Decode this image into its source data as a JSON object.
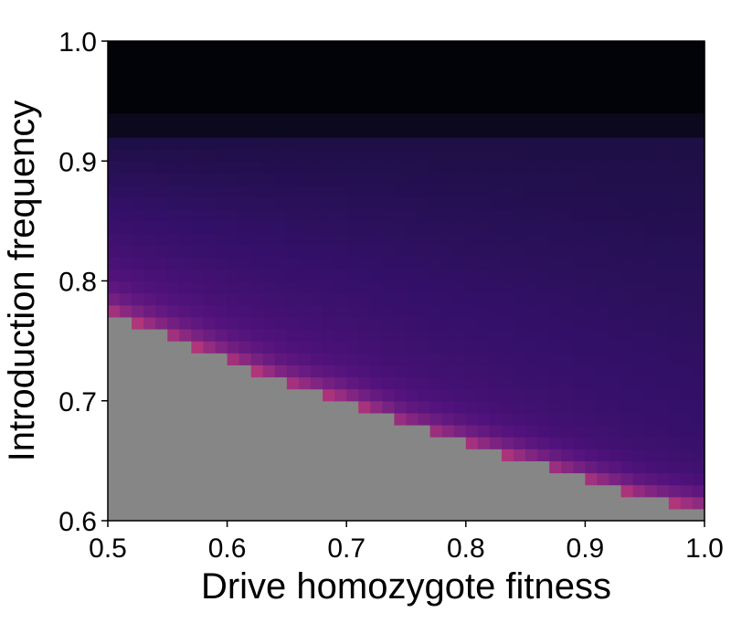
{
  "chart_data": {
    "type": "heatmap",
    "title": "",
    "xlabel": "Drive homozygote fitness",
    "ylabel": "Introduction frequency",
    "xlim": [
      0.5,
      1.0
    ],
    "ylim": [
      0.6,
      1.0
    ],
    "x_ticks": [
      "0.5",
      "0.6",
      "0.7",
      "0.8",
      "0.9",
      "1.0"
    ],
    "y_ticks": [
      "0.6",
      "0.7",
      "0.8",
      "0.9",
      "1.0"
    ],
    "grid": false,
    "legend": "none",
    "colormap": "magma",
    "cell_dx": 0.01,
    "cell_dy": 0.01,
    "fill_value_color": "#868686",
    "threshold_boundary": {
      "description": "cells below this introduction frequency are grey (no value)",
      "x": [
        0.5,
        0.55,
        0.6,
        0.65,
        0.7,
        0.75,
        0.8,
        0.85,
        0.9,
        0.95,
        1.0
      ],
      "y": [
        0.775,
        0.755,
        0.735,
        0.715,
        0.7,
        0.68,
        0.665,
        0.65,
        0.635,
        0.62,
        0.61
      ]
    },
    "value_model": {
      "description": "approximate normalized colormap value v(x,y) in [0,1]",
      "black_band_above": 0.935,
      "near_black_band": [
        0.92,
        0.935
      ],
      "near_black_value": 0.05,
      "upper_value": 0.12,
      "mid_value_low_x": 0.34,
      "mid_value_high_x": 0.24,
      "edge_peak_value": 0.58
    }
  }
}
